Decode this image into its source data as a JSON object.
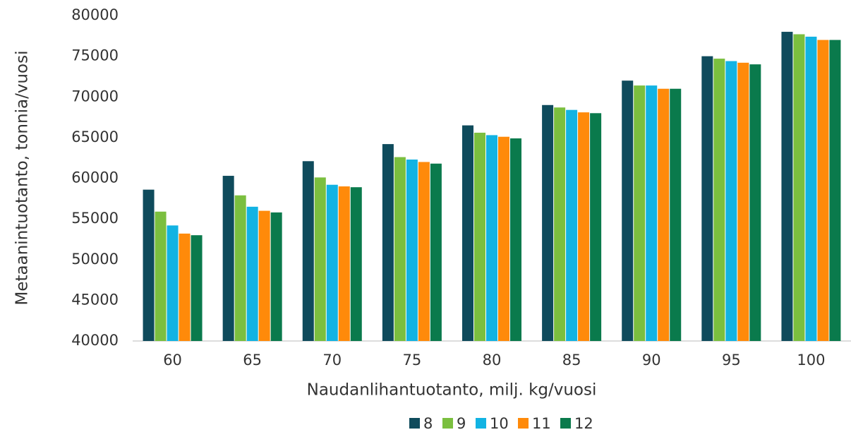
{
  "chart_data": {
    "type": "bar",
    "xlabel": "Naudanlihantuotanto, milj. kg/vuosi",
    "ylabel": "Metaanintuotanto, tonnia/vuosi",
    "categories": [
      "60",
      "65",
      "70",
      "75",
      "80",
      "85",
      "90",
      "95",
      "100"
    ],
    "series": [
      {
        "name": "8",
        "color": "#0f4b5c",
        "values": [
          58600,
          60300,
          62100,
          64200,
          66500,
          69000,
          72000,
          75000,
          78000
        ]
      },
      {
        "name": "9",
        "color": "#7bbf3f",
        "values": [
          55900,
          57900,
          60100,
          62600,
          65600,
          68700,
          71400,
          74700,
          77700
        ]
      },
      {
        "name": "10",
        "color": "#12b3e3",
        "values": [
          54200,
          56500,
          59200,
          62300,
          65300,
          68400,
          71400,
          74400,
          77400
        ]
      },
      {
        "name": "11",
        "color": "#ff8a0a",
        "values": [
          53200,
          56000,
          59000,
          62000,
          65100,
          68100,
          71000,
          74200,
          77000
        ]
      },
      {
        "name": "12",
        "color": "#0a7a4c",
        "values": [
          53000,
          55800,
          58900,
          61800,
          64900,
          68000,
          71000,
          74000,
          77000
        ]
      }
    ],
    "ylim": [
      40000,
      80000
    ],
    "yticks": [
      40000,
      45000,
      50000,
      55000,
      60000,
      65000,
      70000,
      75000,
      80000
    ],
    "grid": false,
    "legend": "bottom"
  }
}
